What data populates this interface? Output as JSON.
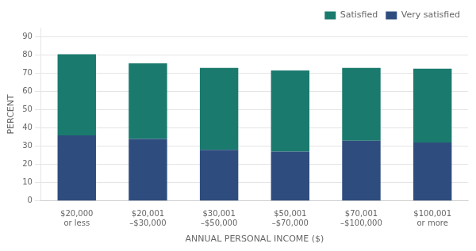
{
  "chart_data": {
    "type": "bar",
    "categories": [
      "$20,000\nor less",
      "$20,001\n–$30,000",
      "$30,001\n–$50,000",
      "$50,001\n–$70,000",
      "$70,001\n–$100,000",
      "$100,001\nor more"
    ],
    "series": [
      {
        "name": "Very satisfied",
        "color": "#2e4d7e",
        "values": [
          36,
          34,
          28,
          27,
          33,
          32
        ]
      },
      {
        "name": "Satisfied",
        "color": "#1a7a6e",
        "values": [
          44.5,
          41.5,
          45,
          44.5,
          40,
          40.5
        ]
      }
    ],
    "x_label": "ANNUAL PERSONAL INCOME ($)",
    "y_label": "PERCENT",
    "ylim": [
      0,
      95
    ],
    "yticks": [
      0,
      10,
      20,
      30,
      40,
      50,
      60,
      70,
      80,
      90
    ],
    "stacked": true,
    "grid": true,
    "legend": "upper right"
  }
}
